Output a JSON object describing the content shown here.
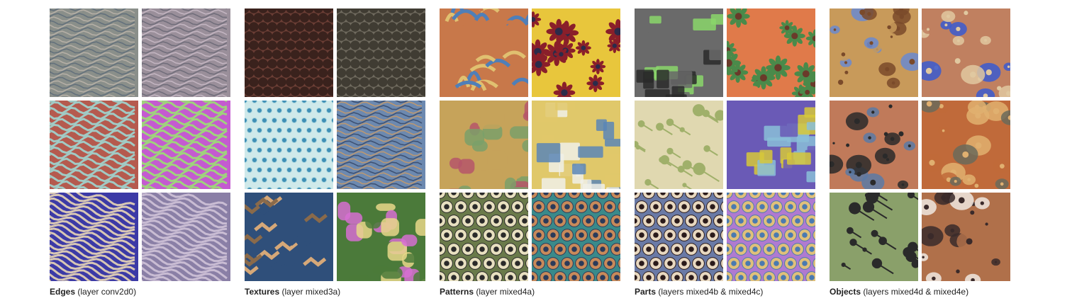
{
  "groups": [
    {
      "title": "Edges",
      "detail": "(layer conv2d0)",
      "tiles": [
        {
          "kind": "waves",
          "c1": "#8a8f8a",
          "c2": "#b9b3a8",
          "c3": "#5f6e7a"
        },
        {
          "kind": "waves",
          "c1": "#9a8f9a",
          "c2": "#c7b8c4",
          "c3": "#6d6a78"
        },
        {
          "kind": "stripes",
          "c1": "#b55a4e",
          "c2": "#9fd6d2",
          "c3": "#7a3a34"
        },
        {
          "kind": "stripes",
          "c1": "#c45bd0",
          "c2": "#9bdf73",
          "c3": "#7b3a86"
        },
        {
          "kind": "diag",
          "c1": "#3c3aa6",
          "c2": "#e9d7b6",
          "c3": "#2a2a7a"
        },
        {
          "kind": "diag",
          "c1": "#8a7fa6",
          "c2": "#cfc3d8",
          "c3": "#5d5a7a"
        }
      ]
    },
    {
      "title": "Textures",
      "detail": "(layer mixed3a)",
      "tiles": [
        {
          "kind": "cells",
          "c1": "#6b3e35",
          "c2": "#c8b8ad",
          "c3": "#3a221d"
        },
        {
          "kind": "cells",
          "c1": "#6f6a5e",
          "c2": "#b9b09a",
          "c3": "#403c33"
        },
        {
          "kind": "dots",
          "c1": "#cfe9ea",
          "c2": "#3f8fb6",
          "c3": "#a9d6de"
        },
        {
          "kind": "waves",
          "c1": "#6c89b0",
          "c2": "#c49a6c",
          "c3": "#3a4d6e"
        },
        {
          "kind": "zigzag",
          "c1": "#2f4f7a",
          "c2": "#d6a878",
          "c3": "#8a6a4a"
        },
        {
          "kind": "blobs",
          "c1": "#4b7a3a",
          "c2": "#d66fd1",
          "c3": "#e8d78a"
        }
      ]
    },
    {
      "title": "Patterns",
      "detail": "(layer mixed4a)",
      "tiles": [
        {
          "kind": "weave",
          "c1": "#c8784a",
          "c2": "#4f7fb8",
          "c3": "#e0c070"
        },
        {
          "kind": "flowers",
          "c1": "#e8c63c",
          "c2": "#8a1f2a",
          "c3": "#2b2b4a"
        },
        {
          "kind": "blobs",
          "c1": "#c6a35a",
          "c2": "#7aa06a",
          "c3": "#b5566a"
        },
        {
          "kind": "labels",
          "c1": "#e0c86a",
          "c2": "#f0f0e8",
          "c3": "#5a86b6"
        },
        {
          "kind": "eyes",
          "c1": "#6a7a4a",
          "c2": "#e8e0c0",
          "c3": "#2a2a2a"
        },
        {
          "kind": "hex",
          "c1": "#3a8a8a",
          "c2": "#c88a5a",
          "c3": "#2a3a5a"
        }
      ]
    },
    {
      "title": "Parts",
      "detail": "(layers mixed4b & mixed4c)",
      "tiles": [
        {
          "kind": "panels",
          "c1": "#6a6a6a",
          "c2": "#2a2a2a",
          "c3": "#8ad66a"
        },
        {
          "kind": "flowers",
          "c1": "#e07a4a",
          "c2": "#4a8a4a",
          "c3": "#6a3a2a"
        },
        {
          "kind": "molecules",
          "c1": "#e0d8b0",
          "c2": "#2a1a1a",
          "c3": "#a0b06a"
        },
        {
          "kind": "patches",
          "c1": "#6a5ab6",
          "c2": "#d6c83a",
          "c3": "#8ac0d8"
        },
        {
          "kind": "eyes",
          "c1": "#6a7aa6",
          "c2": "#e8d8c0",
          "c3": "#2a1a1a"
        },
        {
          "kind": "bubbles",
          "c1": "#b07ad0",
          "c2": "#e0c07a",
          "c3": "#4a7ab0"
        }
      ]
    },
    {
      "title": "Objects",
      "detail": "(layers mixed4d & mixed4e)",
      "tiles": [
        {
          "kind": "towers",
          "c1": "#c89a5a",
          "c2": "#6a8ad0",
          "c3": "#7a4a2a"
        },
        {
          "kind": "legs",
          "c1": "#c08060",
          "c2": "#3a5ad0",
          "c3": "#e0c8a0"
        },
        {
          "kind": "faces",
          "c1": "#c07a5a",
          "c2": "#5a7aa6",
          "c3": "#2a2a2a"
        },
        {
          "kind": "bowls",
          "c1": "#c06a3a",
          "c2": "#6a6a5a",
          "c3": "#e0b070"
        },
        {
          "kind": "spiders",
          "c1": "#8aa06a",
          "c2": "#c05a3a",
          "c3": "#2a2a2a"
        },
        {
          "kind": "dogs",
          "c1": "#b0704a",
          "c2": "#f0e8e0",
          "c3": "#3a2a2a"
        }
      ]
    }
  ]
}
